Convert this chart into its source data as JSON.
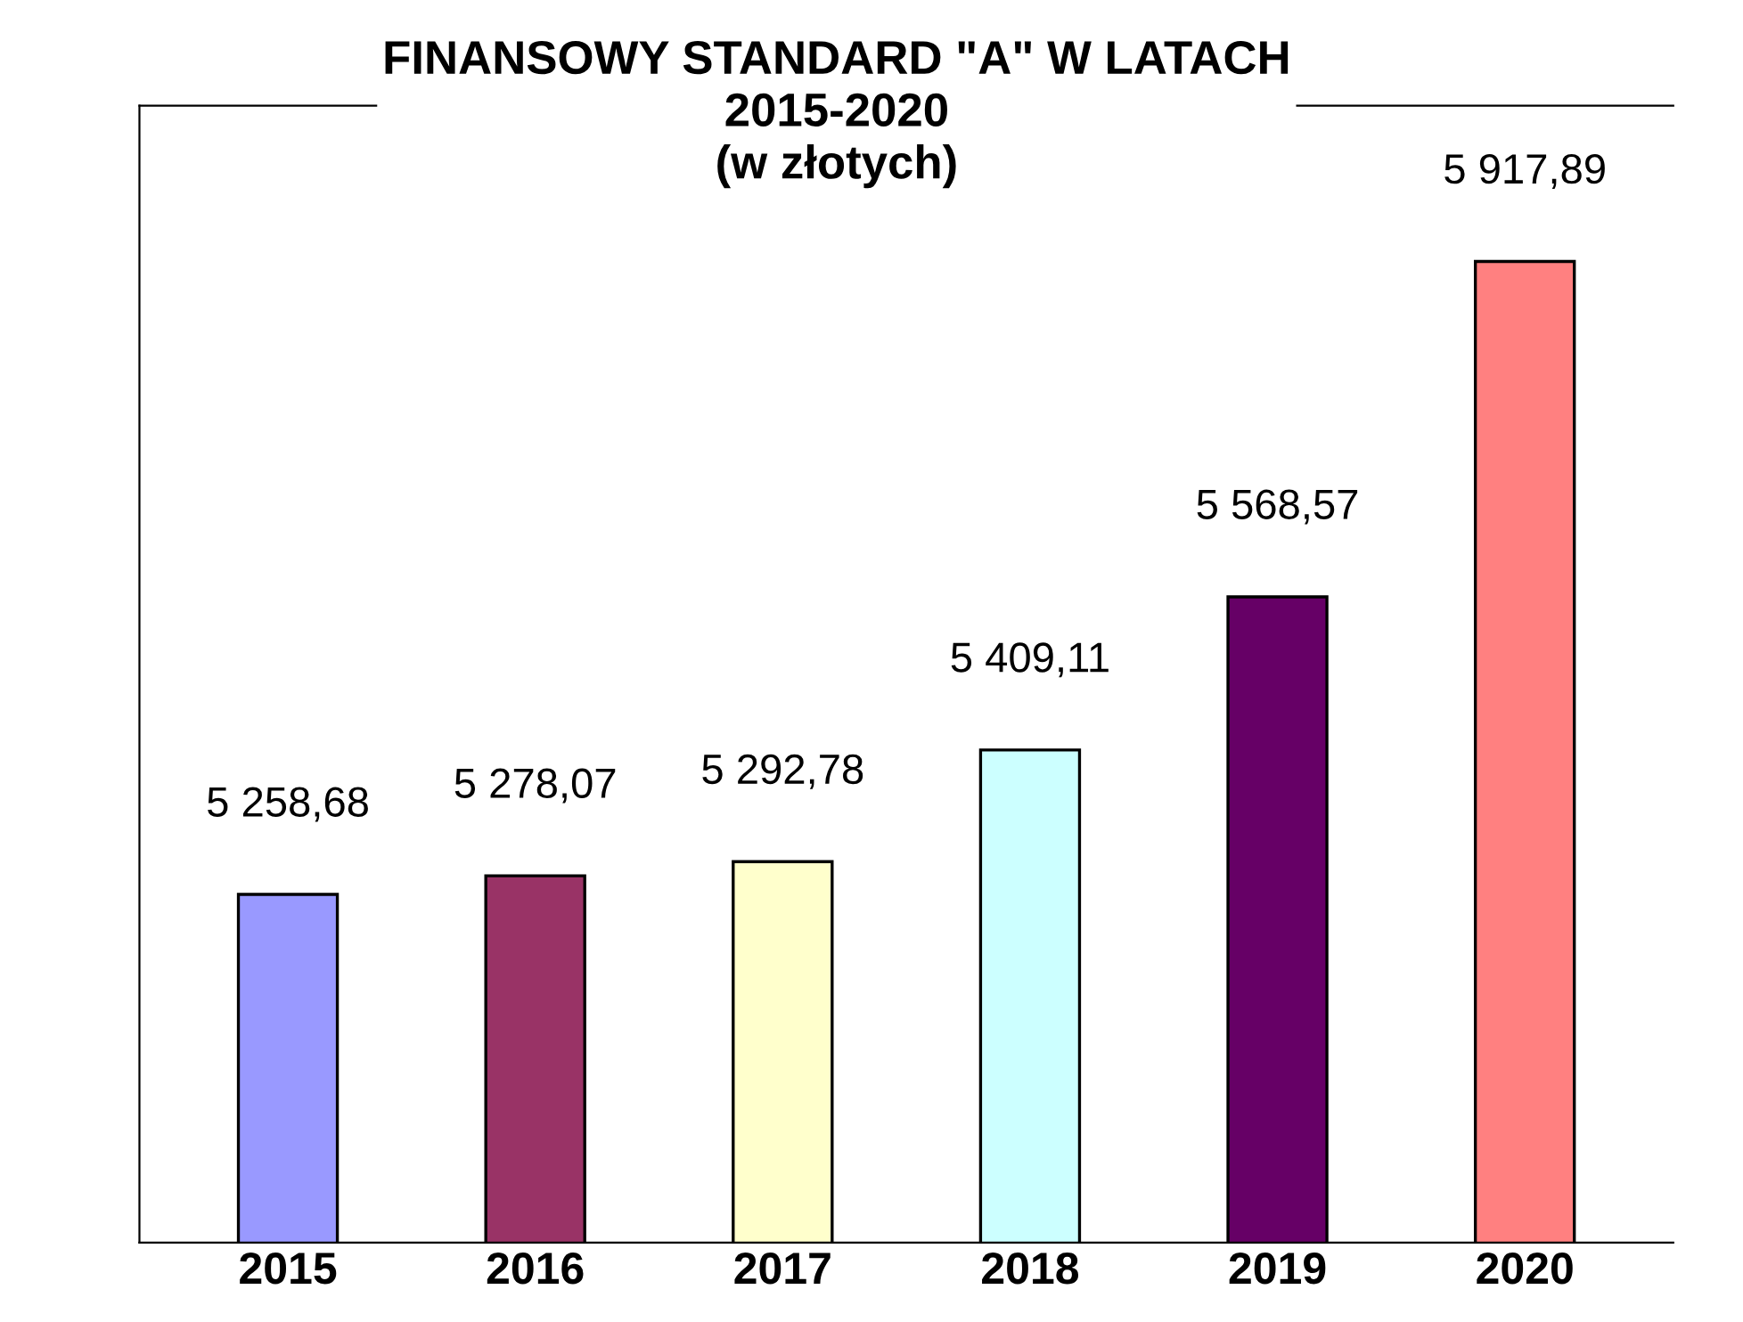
{
  "chart_data": {
    "type": "bar",
    "title": "FINANSOWY STANDARD \"A\" W LATACH\n2015-2020\n(w złotych)",
    "categories": [
      "2015",
      "2016",
      "2017",
      "2018",
      "2019",
      "2020"
    ],
    "values": [
      5258.68,
      5278.07,
      5292.78,
      5409.11,
      5568.57,
      5917.89
    ],
    "value_labels": [
      "5 258,68",
      "5 278,07",
      "5 292,78",
      "5 409,11",
      "5 568,57",
      "5 917,89"
    ],
    "colors": [
      "#9999ff",
      "#993366",
      "#ffffcc",
      "#ccffff",
      "#660066",
      "#ff8080"
    ],
    "ylim": [
      4896,
      6080
    ],
    "tick_labels": "x",
    "grid": false,
    "legend": false
  }
}
